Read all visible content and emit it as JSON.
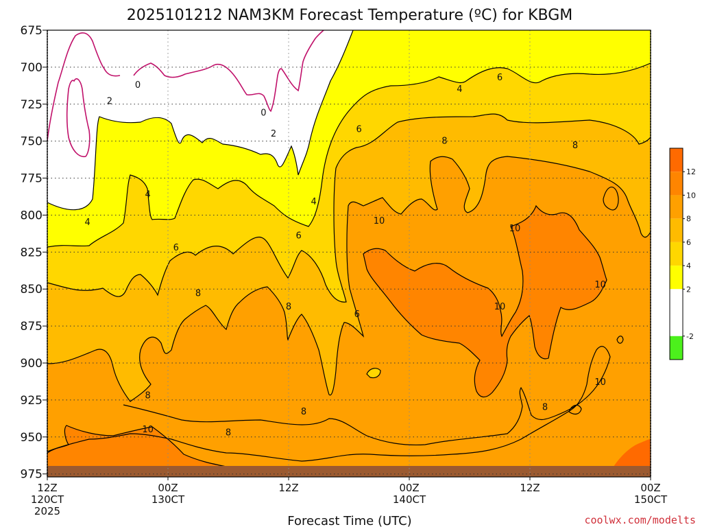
{
  "chart_data": {
    "type": "heatmap",
    "title": "2025101212 NAM3KM Forecast Temperature (ºC) for KBGM",
    "xlabel": "Forecast Time (UTC)",
    "ylabel": "",
    "credit": "coolwx.com/modelts",
    "x_ticks": [
      {
        "hour": 0,
        "lines": [
          "12Z",
          "120CT",
          "2025"
        ]
      },
      {
        "hour": 12,
        "lines": [
          "00Z",
          "130CT"
        ]
      },
      {
        "hour": 24,
        "lines": [
          "12Z"
        ]
      },
      {
        "hour": 36,
        "lines": [
          "00Z",
          "140CT"
        ]
      },
      {
        "hour": 48,
        "lines": [
          "12Z"
        ]
      },
      {
        "hour": 60,
        "lines": [
          "00Z",
          "150CT"
        ]
      }
    ],
    "xlim": [
      0,
      60
    ],
    "y_ticks": [
      "675",
      "700",
      "725",
      "750",
      "775",
      "800",
      "825",
      "850",
      "875",
      "900",
      "925",
      "950",
      "975"
    ],
    "ylim": [
      675,
      977
    ],
    "colorbar": {
      "labels": [
        "12",
        "10",
        "8",
        "6",
        "4",
        "2",
        "-2"
      ],
      "bands": [
        {
          "min": 12,
          "max": 14,
          "color": "#ff6a00"
        },
        {
          "min": 10,
          "max": 12,
          "color": "#ff8500"
        },
        {
          "min": 8,
          "max": 10,
          "color": "#ffa000"
        },
        {
          "min": 6,
          "max": 8,
          "color": "#ffbb00"
        },
        {
          "min": 4,
          "max": 6,
          "color": "#ffd700"
        },
        {
          "min": 2,
          "max": 4,
          "color": "#ffff00"
        },
        {
          "min": 0,
          "max": 2,
          "color": "#ffffff"
        },
        {
          "min": -2,
          "max": 0,
          "color": "#ffffff"
        },
        {
          "min": -4,
          "max": -2,
          "color": "#4cf01c"
        }
      ]
    },
    "zero_contour_color": "#c0106a",
    "ground_color": "#9b5a30",
    "contour_labels": [
      {
        "hour": 9.0,
        "pressure": 712,
        "value": "0"
      },
      {
        "hour": 21.5,
        "pressure": 731,
        "value": "0"
      },
      {
        "hour": 6.2,
        "pressure": 723,
        "value": "2"
      },
      {
        "hour": 22.5,
        "pressure": 745,
        "value": "2"
      },
      {
        "hour": 4.0,
        "pressure": 805,
        "value": "4"
      },
      {
        "hour": 10.0,
        "pressure": 786,
        "value": "4"
      },
      {
        "hour": 26.5,
        "pressure": 791,
        "value": "4"
      },
      {
        "hour": 41.0,
        "pressure": 715,
        "value": "4"
      },
      {
        "hour": 12.8,
        "pressure": 822,
        "value": "6"
      },
      {
        "hour": 25.0,
        "pressure": 814,
        "value": "6"
      },
      {
        "hour": 31.0,
        "pressure": 742,
        "value": "6"
      },
      {
        "hour": 45.0,
        "pressure": 707,
        "value": "6"
      },
      {
        "hour": 30.8,
        "pressure": 867,
        "value": "6"
      },
      {
        "hour": 15.0,
        "pressure": 853,
        "value": "8"
      },
      {
        "hour": 24.0,
        "pressure": 862,
        "value": "8"
      },
      {
        "hour": 10.0,
        "pressure": 922,
        "value": "8"
      },
      {
        "hour": 18.0,
        "pressure": 947,
        "value": "8"
      },
      {
        "hour": 25.5,
        "pressure": 933,
        "value": "8"
      },
      {
        "hour": 39.5,
        "pressure": 750,
        "value": "8"
      },
      {
        "hour": 52.5,
        "pressure": 753,
        "value": "8"
      },
      {
        "hour": 49.5,
        "pressure": 930,
        "value": "8"
      },
      {
        "hour": 33.0,
        "pressure": 804,
        "value": "10"
      },
      {
        "hour": 46.5,
        "pressure": 809,
        "value": "10"
      },
      {
        "hour": 45.0,
        "pressure": 862,
        "value": "10"
      },
      {
        "hour": 55.0,
        "pressure": 847,
        "value": "10"
      },
      {
        "hour": 55.0,
        "pressure": 913,
        "value": "10"
      },
      {
        "hour": 10.0,
        "pressure": 945,
        "value": "10"
      }
    ]
  }
}
